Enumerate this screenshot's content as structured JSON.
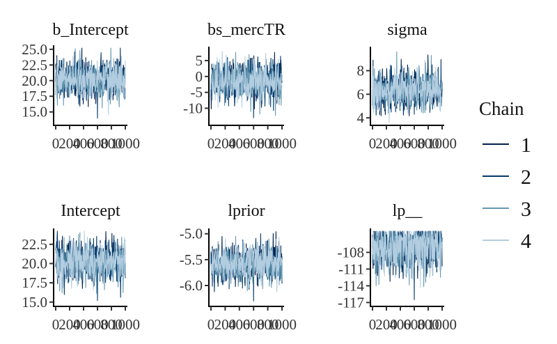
{
  "chart_data": {
    "type": "line",
    "chain_colors": [
      "#011f4b",
      "#03396c",
      "#6497b1",
      "#b3cde0"
    ],
    "legend": {
      "title": "Chain",
      "entries": [
        {
          "label": "1",
          "color": "#011f4b"
        },
        {
          "label": "2",
          "color": "#03396c"
        },
        {
          "label": "3",
          "color": "#6497b1"
        },
        {
          "label": "4",
          "color": "#b3cde0"
        }
      ]
    },
    "panels": [
      {
        "title": "b_Intercept",
        "xlim": [
          0,
          1000
        ],
        "xticks": [
          "0",
          "200",
          "400",
          "600",
          "800",
          "1000"
        ],
        "ylim": [
          13.3,
          25.2
        ],
        "yticks": [
          15.0,
          17.5,
          20.0,
          22.5,
          25.0
        ],
        "ytick_labels": [
          "15.0",
          "17.5",
          "20.0",
          "22.5",
          "25.0"
        ],
        "center": 20.3,
        "spread": 1.6,
        "low_spike": 14.0,
        "high_spike": 24.8
      },
      {
        "title": "bs_mercTR",
        "xlim": [
          0,
          1000
        ],
        "xticks": [
          "0",
          "200",
          "400",
          "600",
          "800",
          "1000"
        ],
        "ylim": [
          -14.5,
          8.5
        ],
        "yticks": [
          -10,
          -5,
          0,
          5
        ],
        "ytick_labels": [
          "-10",
          "-5",
          "0",
          "5"
        ],
        "center": -1.5,
        "spread": 3.3,
        "low_spike": -13.0,
        "high_spike": 7.5
      },
      {
        "title": "sigma",
        "xlim": [
          0,
          1000
        ],
        "xticks": [
          "0",
          "200",
          "400",
          "600",
          "800",
          "1000"
        ],
        "ylim": [
          3.6,
          9.8
        ],
        "yticks": [
          4,
          6,
          8
        ],
        "ytick_labels": [
          "4",
          "6",
          "8"
        ],
        "center": 6.4,
        "spread": 0.9,
        "low_spike": 4.3,
        "high_spike": 9.6
      },
      {
        "title": "Intercept",
        "xlim": [
          0,
          1000
        ],
        "xticks": [
          "0",
          "200",
          "400",
          "600",
          "800",
          "1000"
        ],
        "ylim": [
          14.8,
          24.2
        ],
        "yticks": [
          15.0,
          17.5,
          20.0,
          22.5
        ],
        "ytick_labels": [
          "15.0",
          "17.5",
          "20.0",
          "22.5"
        ],
        "center": 20.3,
        "spread": 1.4,
        "low_spike": 15.2,
        "high_spike": 24.0
      },
      {
        "title": "lprior",
        "xlim": [
          0,
          1000
        ],
        "xticks": [
          "0",
          "200",
          "400",
          "600",
          "800",
          "1000"
        ],
        "ylim": [
          -6.35,
          -4.95
        ],
        "yticks": [
          -6.0,
          -5.5,
          -5.0
        ],
        "ytick_labels": [
          "-6.0",
          "-5.5",
          "-5.0"
        ],
        "center": -5.58,
        "spread": 0.2,
        "low_spike": -6.3,
        "high_spike": -5.05
      },
      {
        "title": "lp__",
        "xlim": [
          0,
          1000
        ],
        "xticks": [
          "0",
          "200",
          "400",
          "600",
          "800",
          "1000"
        ],
        "ylim": [
          -117.2,
          -104.2
        ],
        "yticks": [
          -117,
          -114,
          -111,
          -108
        ],
        "ytick_labels": [
          "-117",
          "-114",
          "-111",
          "-108"
        ],
        "center": -106.6,
        "spread": 1.6,
        "low_spike": -116.5,
        "high_spike": -104.9,
        "skew": "down"
      }
    ]
  }
}
